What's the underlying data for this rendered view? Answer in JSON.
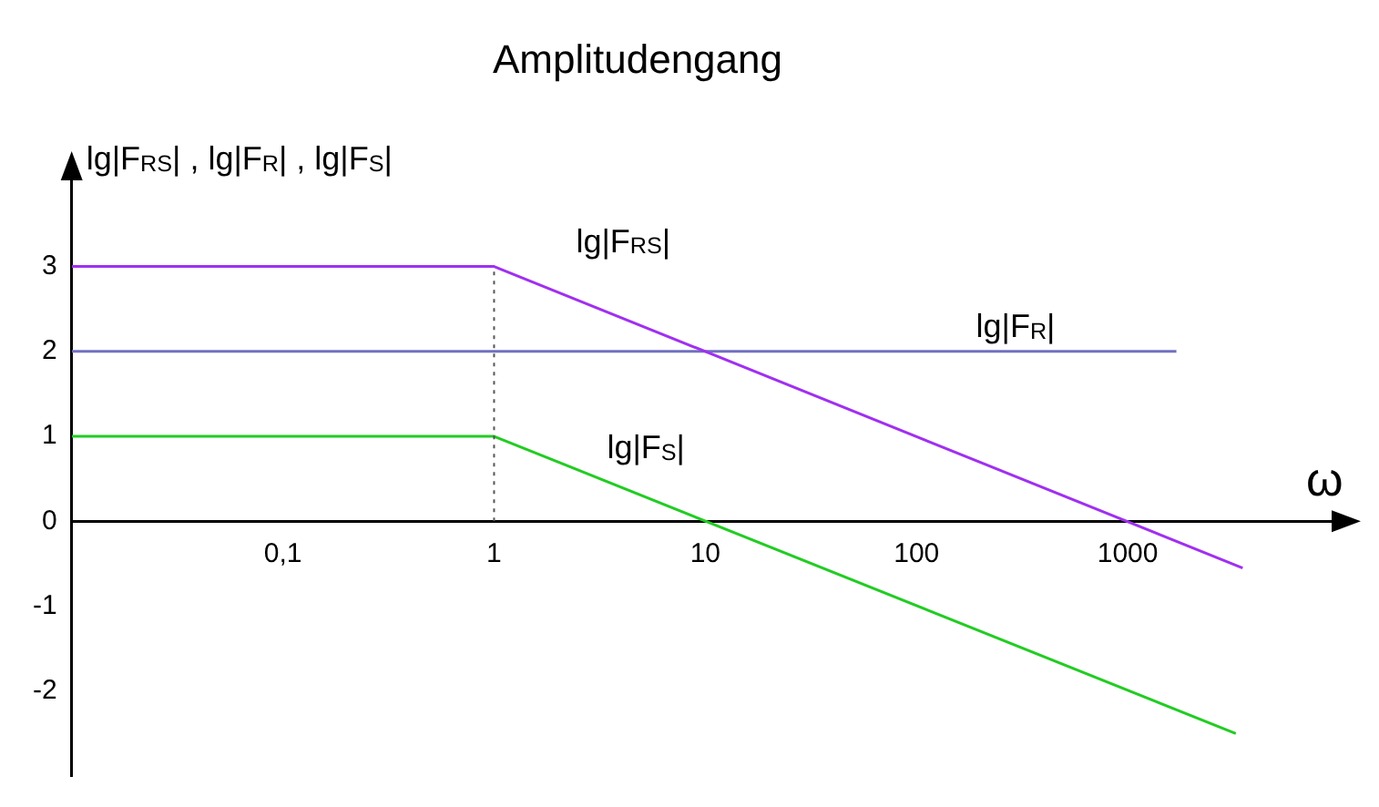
{
  "chart_data": {
    "type": "line",
    "title": "Amplitudengang",
    "xlabel": "ω",
    "ylabel": "lg|F$_{RS}$| , lg|F$_{R}$| , lg|F$_{S}$|",
    "log": "x",
    "xlim": [
      0.01,
      10000
    ],
    "xticks": [
      {
        "value": 0.1,
        "label": "0,1"
      },
      1,
      10,
      100,
      1000
    ],
    "ylim": [
      -3,
      4.1
    ],
    "yticks": [
      -2,
      -1,
      0,
      1,
      2,
      3
    ],
    "grid": false,
    "legend": false,
    "marker": "none",
    "line_style": "solid",
    "ref_lines": [
      {
        "axis": "x",
        "value": 1,
        "line_style": "dotted",
        "color": "#555555"
      }
    ],
    "series": [
      {
        "name": "lg|F$_{RS}$|",
        "color": "#a030f0",
        "x": [
          0.01,
          1,
          3500
        ],
        "values": [
          3,
          3,
          -0.55
        ]
      },
      {
        "name": "lg|F$_{R}$|",
        "color": "#7070c0",
        "x": [
          0.01,
          1700
        ],
        "values": [
          2,
          2
        ]
      },
      {
        "name": "lg|F$_{S}$|",
        "color": "#22cc22",
        "x": [
          0.01,
          1,
          3250
        ],
        "values": [
          1,
          1,
          -2.5
        ]
      }
    ]
  }
}
